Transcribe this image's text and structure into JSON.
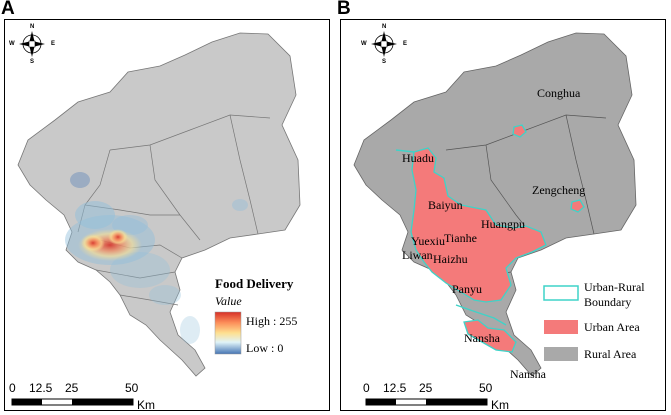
{
  "panel_a": {
    "label": "A",
    "legend_title": "Food Delivery",
    "legend_subtitle": "Value",
    "high_label": "High : 255",
    "low_label": "Low : 0"
  },
  "panel_b": {
    "label": "B",
    "districts": {
      "conghua": "Conghua",
      "huadu": "Huadu",
      "zengcheng": "Zengcheng",
      "baiyun": "Baiyun",
      "huangpu": "Huangpu",
      "yuexiu": "Yuexiu",
      "tianhe": "Tianhe",
      "liwan": "Liwan",
      "haizhu": "Haizhu",
      "panyu": "Panyu",
      "nansha_1": "Nansha",
      "nansha_2": "Nansha"
    },
    "legend": {
      "boundary_line1": "Urban-Rural",
      "boundary_line2": "Boundary",
      "urban": "Urban Area",
      "rural": "Rural Area"
    }
  },
  "compass": {
    "n": "N",
    "s": "S",
    "e": "E",
    "w": "W"
  },
  "scale": {
    "ticks": [
      "0",
      "12.5",
      "25",
      "50"
    ],
    "unit": "Km"
  },
  "colors": {
    "rural": "#a9a9a9",
    "urban": "#f47a7a",
    "boundary": "#3fd3c8",
    "map_base": "#c9c9c9",
    "ramp": [
      "#d73027",
      "#fc8d59",
      "#fee090",
      "#e0f3f8",
      "#91bfdb",
      "#4575b4"
    ]
  }
}
